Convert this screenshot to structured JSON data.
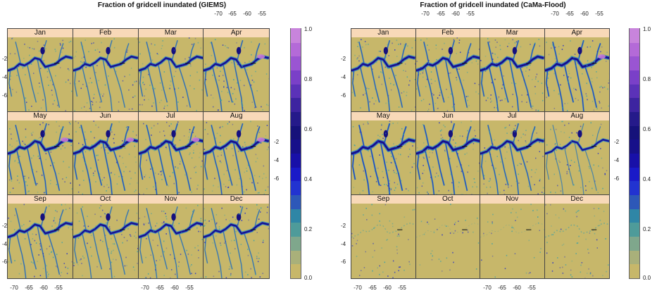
{
  "figures": [
    {
      "id": "giems",
      "title": "Fraction of gridcell inundated (GIEMS)",
      "panels": [
        {
          "month": "Jan",
          "wet": 0.6,
          "highlight": false,
          "sparse": false
        },
        {
          "month": "Feb",
          "wet": 0.6,
          "highlight": false,
          "sparse": false
        },
        {
          "month": "Mar",
          "wet": 0.65,
          "highlight": false,
          "sparse": false
        },
        {
          "month": "Apr",
          "wet": 0.7,
          "highlight": true,
          "sparse": false
        },
        {
          "month": "May",
          "wet": 0.8,
          "highlight": true,
          "sparse": false
        },
        {
          "month": "Jun",
          "wet": 0.85,
          "highlight": true,
          "sparse": false
        },
        {
          "month": "Jul",
          "wet": 0.85,
          "highlight": true,
          "sparse": false
        },
        {
          "month": "Aug",
          "wet": 0.8,
          "highlight": true,
          "sparse": false
        },
        {
          "month": "Sep",
          "wet": 0.65,
          "highlight": false,
          "sparse": false
        },
        {
          "month": "Oct",
          "wet": 0.6,
          "highlight": false,
          "sparse": false
        },
        {
          "month": "Nov",
          "wet": 0.6,
          "highlight": false,
          "sparse": false
        },
        {
          "month": "Dec",
          "wet": 0.6,
          "highlight": false,
          "sparse": false
        }
      ],
      "top_ticks": [
        "-70",
        "-65",
        "-60",
        "-55"
      ],
      "bottom_ticks": [
        "-70",
        "-65",
        "-60",
        "-55"
      ],
      "left_ticks": [
        "-2",
        "-4",
        "-6"
      ],
      "right_ticks": [
        "-2",
        "-4",
        "-6"
      ]
    },
    {
      "id": "cama",
      "title": "Fraction of gridcell inundated (CaMa-Flood)",
      "panels": [
        {
          "month": "Jan",
          "wet": 0.75,
          "highlight": false,
          "sparse": false
        },
        {
          "month": "Feb",
          "wet": 0.8,
          "highlight": false,
          "sparse": false
        },
        {
          "month": "Mar",
          "wet": 0.85,
          "highlight": false,
          "sparse": false
        },
        {
          "month": "Apr",
          "wet": 0.9,
          "highlight": true,
          "sparse": false
        },
        {
          "month": "May",
          "wet": 0.95,
          "highlight": false,
          "sparse": false
        },
        {
          "month": "Jun",
          "wet": 0.9,
          "highlight": false,
          "sparse": false
        },
        {
          "month": "Jul",
          "wet": 0.75,
          "highlight": false,
          "sparse": false
        },
        {
          "month": "Aug",
          "wet": 0.45,
          "highlight": false,
          "sparse": false
        },
        {
          "month": "Sep",
          "wet": 0.2,
          "highlight": false,
          "sparse": true
        },
        {
          "month": "Oct",
          "wet": 0.05,
          "highlight": false,
          "sparse": true
        },
        {
          "month": "Nov",
          "wet": 0.05,
          "highlight": false,
          "sparse": true
        },
        {
          "month": "Dec",
          "wet": 0.25,
          "highlight": false,
          "sparse": true
        }
      ],
      "top_ticks": [
        "-70",
        "-65",
        "-60",
        "-55"
      ],
      "bottom_ticks": [
        "-70",
        "-65",
        "-60",
        "-55"
      ],
      "left_ticks": [
        "-2",
        "-4",
        "-6"
      ],
      "right_ticks": [
        "-2",
        "-4",
        "-6"
      ]
    }
  ],
  "colorbar": {
    "labels": [
      "1.0",
      "0.8",
      "0.6",
      "0.4",
      "0.2",
      "0.0"
    ],
    "colors": [
      "#c7b76a",
      "#a9b07a",
      "#7fa78c",
      "#4e9b9a",
      "#2f86a6",
      "#2d58b8",
      "#2233d0",
      "#1a1ac8",
      "#1810a8",
      "#17108a",
      "#16127a",
      "#251a8a",
      "#3d24a0",
      "#5b32b8",
      "#7a40c8",
      "#9a55d2",
      "#b46ad8",
      "#c884dc"
    ]
  },
  "colors": {
    "land": "#c7b76a",
    "river_dark": "#15107e",
    "river_mid": "#2630c8",
    "shallow": "#3aa0a8",
    "highlight": "#c67ad8",
    "strip": "#f8d9b8"
  }
}
